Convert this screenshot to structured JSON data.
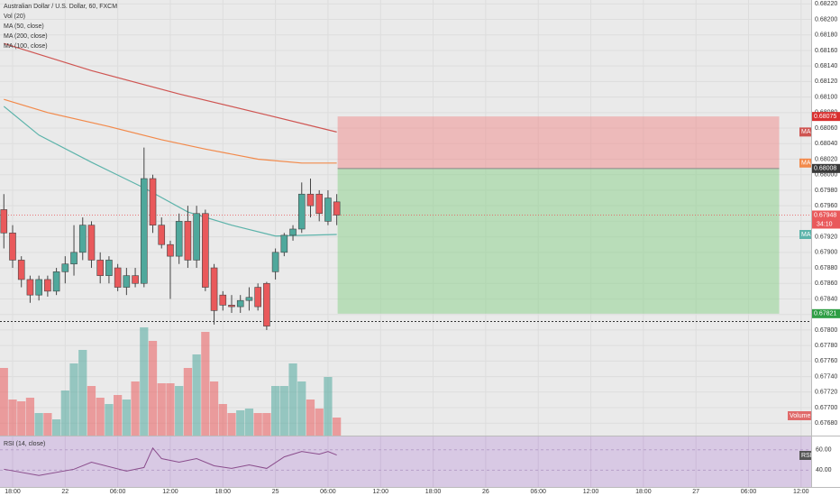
{
  "chart_data": {
    "type": "candlestick",
    "title": "Australian Dollar / U.S. Dollar, 60, FXCM",
    "xlim": [
      -1.44,
      91.15
    ],
    "xticks": [
      {
        "value": 0,
        "label": "18:00"
      },
      {
        "value": 6,
        "label": "22"
      },
      {
        "value": 12,
        "label": "06:00"
      },
      {
        "value": 18,
        "label": "12:00"
      },
      {
        "value": 24,
        "label": "18:00"
      },
      {
        "value": 30,
        "label": "25"
      },
      {
        "value": 36,
        "label": "06:00"
      },
      {
        "value": 42,
        "label": "12:00"
      },
      {
        "value": 48,
        "label": "18:00"
      },
      {
        "value": 54,
        "label": "26"
      },
      {
        "value": 60,
        "label": "06:00"
      },
      {
        "value": 66,
        "label": "12:00"
      },
      {
        "value": 72,
        "label": "18:00"
      },
      {
        "value": 78,
        "label": "27"
      },
      {
        "value": 84,
        "label": "06:00"
      },
      {
        "value": 90,
        "label": "12:00"
      }
    ],
    "ylim": [
      0.67664,
      0.68225
    ],
    "yticks": [
      {
        "value": 0.6768,
        "label": "0.67680"
      },
      {
        "value": 0.677,
        "label": "0.67700"
      },
      {
        "value": 0.6772,
        "label": "0.67720"
      },
      {
        "value": 0.6774,
        "label": "0.67740"
      },
      {
        "value": 0.6776,
        "label": "0.67760"
      },
      {
        "value": 0.6778,
        "label": "0.67780"
      },
      {
        "value": 0.678,
        "label": "0.67800"
      },
      {
        "value": 0.6782,
        "label": "0.67820"
      },
      {
        "value": 0.6784,
        "label": "0.67840"
      },
      {
        "value": 0.6786,
        "label": "0.67860"
      },
      {
        "value": 0.6788,
        "label": "0.67880"
      },
      {
        "value": 0.679,
        "label": "0.67900"
      },
      {
        "value": 0.6792,
        "label": "0.67920"
      },
      {
        "value": 0.6794,
        "label": "0.67940"
      },
      {
        "value": 0.6796,
        "label": "0.67960"
      },
      {
        "value": 0.6798,
        "label": "0.67980"
      },
      {
        "value": 0.68,
        "label": "0.68000"
      },
      {
        "value": 0.6802,
        "label": "0.68020"
      },
      {
        "value": 0.6804,
        "label": "0.68040"
      },
      {
        "value": 0.6806,
        "label": "0.68060"
      },
      {
        "value": 0.6808,
        "label": "0.68080"
      },
      {
        "value": 0.681,
        "label": "0.68100"
      },
      {
        "value": 0.6812,
        "label": "0.68120"
      },
      {
        "value": 0.6814,
        "label": "0.68140"
      },
      {
        "value": 0.6816,
        "label": "0.68160"
      },
      {
        "value": 0.6818,
        "label": "0.68180"
      },
      {
        "value": 0.682,
        "label": "0.68200"
      },
      {
        "value": 0.6822,
        "label": "0.68220"
      }
    ],
    "grid": true,
    "up_color": "#4fa89c",
    "down_color": "#e9595b",
    "x": [
      -1,
      0,
      1,
      2,
      3,
      4,
      5,
      6,
      7,
      8,
      9,
      10,
      11,
      12,
      13,
      14,
      15,
      16,
      17,
      18,
      19,
      20,
      21,
      22,
      23,
      24,
      25,
      26,
      27,
      28,
      29,
      30,
      31,
      32,
      33,
      34,
      35,
      36,
      37
    ],
    "open": [
      0.67955,
      0.67925,
      0.6789,
      0.67865,
      0.67845,
      0.67865,
      0.6785,
      0.67875,
      0.67885,
      0.679,
      0.67935,
      0.6789,
      0.6787,
      0.6788,
      0.67855,
      0.6787,
      0.6786,
      0.67995,
      0.67935,
      0.6791,
      0.67895,
      0.6794,
      0.6789,
      0.6795,
      0.6788,
      0.67845,
      0.67832,
      0.6783,
      0.67838,
      0.67855,
      0.6786,
      0.67875,
      0.679,
      0.67922,
      0.6793,
      0.67975,
      0.67975,
      0.6794,
      0.67965
    ],
    "high": [
      0.67975,
      0.67935,
      0.67895,
      0.6787,
      0.6787,
      0.6787,
      0.6788,
      0.67895,
      0.67935,
      0.67945,
      0.6794,
      0.679,
      0.67895,
      0.67885,
      0.6788,
      0.6788,
      0.68035,
      0.68,
      0.67945,
      0.67915,
      0.6795,
      0.6796,
      0.6796,
      0.67955,
      0.67885,
      0.6785,
      0.67845,
      0.67845,
      0.67855,
      0.6786,
      0.67862,
      0.67905,
      0.67925,
      0.67935,
      0.6799,
      0.67995,
      0.6798,
      0.6798,
      0.67975
    ],
    "low": [
      0.67905,
      0.6788,
      0.67855,
      0.67835,
      0.67838,
      0.67843,
      0.67845,
      0.6786,
      0.6787,
      0.6789,
      0.6788,
      0.6786,
      0.6786,
      0.6785,
      0.67845,
      0.67855,
      0.67855,
      0.67925,
      0.67905,
      0.6784,
      0.67885,
      0.6788,
      0.6788,
      0.6785,
      0.67807,
      0.67825,
      0.67822,
      0.67822,
      0.67825,
      0.67825,
      0.678,
      0.67865,
      0.67895,
      0.67915,
      0.67925,
      0.67945,
      0.6794,
      0.67935,
      0.67935
    ],
    "close": [
      0.67925,
      0.6789,
      0.67865,
      0.67845,
      0.67865,
      0.6785,
      0.67875,
      0.67885,
      0.679,
      0.67935,
      0.6789,
      0.6787,
      0.6789,
      0.67855,
      0.6787,
      0.6786,
      0.67995,
      0.67935,
      0.6791,
      0.67895,
      0.6794,
      0.6789,
      0.6795,
      0.67855,
      0.67825,
      0.67832,
      0.6783,
      0.67838,
      0.67842,
      0.6783,
      0.67805,
      0.679,
      0.67922,
      0.6793,
      0.67975,
      0.6796,
      0.6795,
      0.6797,
      0.67948
    ],
    "volume": {
      "name": "Vol (20)",
      "tag": "Volume",
      "values": [
        75,
        40,
        38,
        42,
        25,
        25,
        18,
        50,
        80,
        95,
        55,
        42,
        35,
        45,
        40,
        60,
        120,
        105,
        58,
        58,
        55,
        75,
        90,
        115,
        60,
        35,
        25,
        28,
        30,
        25,
        25,
        55,
        55,
        80,
        60,
        40,
        30,
        65,
        20
      ]
    },
    "series": [
      {
        "name": "MA (50, close)",
        "color": "#5cb3aa",
        "tag": "MA",
        "x": [
          -1,
          3,
          9,
          15,
          20,
          25,
          30,
          37
        ],
        "values": [
          0.68088,
          0.68051,
          0.68016,
          0.67983,
          0.67952,
          0.67935,
          0.67921,
          0.67923
        ]
      },
      {
        "name": "MA (200, close)",
        "color": "#cf5552",
        "tag": "MA",
        "x": [
          -1,
          9,
          19,
          29,
          37
        ],
        "values": [
          0.68169,
          0.68134,
          0.68104,
          0.68077,
          0.68055
        ]
      },
      {
        "name": "MA (100, close)",
        "color": "#f2894a",
        "tag": "MA",
        "x": [
          -1,
          4,
          11,
          17,
          22,
          28,
          33,
          37
        ],
        "values": [
          0.68097,
          0.6808,
          0.68062,
          0.68045,
          0.68033,
          0.6802,
          0.68015,
          0.68015
        ]
      }
    ],
    "position": {
      "x": [
        37.1,
        87.5
      ],
      "stop": {
        "value": 0.68075,
        "label": "0.68075"
      },
      "entry": {
        "value": 0.68008,
        "label": "0.68008"
      },
      "target": {
        "value": 0.67821,
        "label": "0.67821"
      }
    },
    "last_price": {
      "value": 0.67948,
      "label": "0.67948",
      "countdown": "34:10"
    },
    "horizontal_line": 0.67811,
    "rsi": {
      "name": "RSI (14, close)",
      "tag": "RSI",
      "color": "#8a4d8c",
      "ylim": [
        23.5,
        73
      ],
      "yticks": [
        {
          "value": 60,
          "label": "60.00"
        },
        {
          "value": 40,
          "label": "40.00"
        }
      ],
      "x": [
        -1,
        3,
        7,
        9,
        13,
        15,
        16,
        17,
        19,
        21,
        23,
        25,
        27,
        29,
        31,
        33,
        35,
        36,
        37
      ],
      "values": [
        40.9,
        34.8,
        40.9,
        47.8,
        39.1,
        42.6,
        61.7,
        51.3,
        47.8,
        51.3,
        44.3,
        41.7,
        45.2,
        41.7,
        53.0,
        58.3,
        55.7,
        58.3,
        54.8
      ]
    }
  }
}
